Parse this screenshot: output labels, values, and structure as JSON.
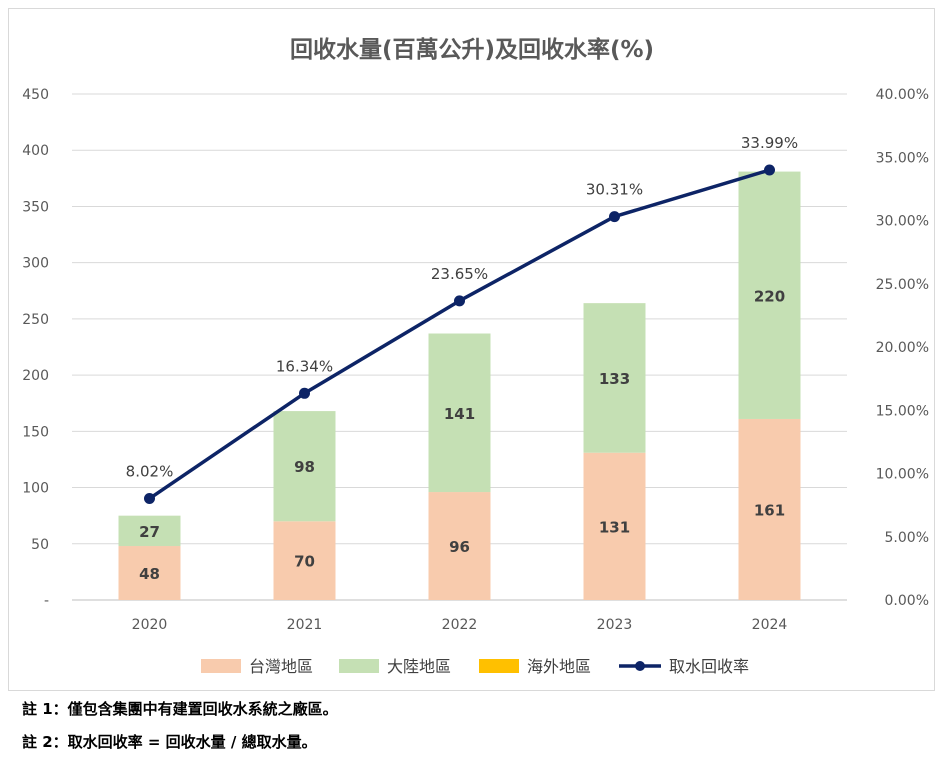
{
  "chart_data": {
    "type": "bar+line",
    "title": "回收水量(百萬公升)及回收水率(%)",
    "categories": [
      "2020",
      "2021",
      "2022",
      "2023",
      "2024"
    ],
    "series": [
      {
        "name": "台灣地區",
        "type": "stacked-bar",
        "axis": "left",
        "color": "#f8cbad",
        "values": [
          48,
          70,
          96,
          131,
          161
        ]
      },
      {
        "name": "大陸地區",
        "type": "stacked-bar",
        "axis": "left",
        "color": "#c5e0b4",
        "values": [
          27,
          98,
          141,
          133,
          220
        ]
      },
      {
        "name": "海外地區",
        "type": "stacked-bar",
        "axis": "left",
        "color": "#ffc000",
        "values": [
          0,
          0,
          0,
          0,
          0
        ]
      },
      {
        "name": "取水回收率",
        "type": "line",
        "axis": "right",
        "color": "#0d2466",
        "values": [
          8.02,
          16.34,
          23.65,
          30.31,
          33.99
        ]
      }
    ],
    "line_labels": [
      "8.02%",
      "16.34%",
      "23.65%",
      "30.31%",
      "33.99%"
    ],
    "left_axis": {
      "ylim": [
        0,
        450
      ],
      "ticks": [
        0,
        50,
        100,
        150,
        200,
        250,
        300,
        350,
        400,
        450
      ],
      "tick_labels": [
        "-",
        "50",
        "100",
        "150",
        "200",
        "250",
        "300",
        "350",
        "400",
        "450"
      ]
    },
    "right_axis": {
      "ylim": [
        0,
        40
      ],
      "ticks": [
        0,
        5,
        10,
        15,
        20,
        25,
        30,
        35,
        40
      ],
      "tick_labels": [
        "0.00%",
        "5.00%",
        "10.00%",
        "15.00%",
        "20.00%",
        "25.00%",
        "30.00%",
        "35.00%",
        "40.00%"
      ]
    },
    "grid": true,
    "legend_position": "bottom"
  },
  "notes": [
    "註 1：僅包含集團中有建置回收水系統之廠區。",
    "註 2：取水回收率 = 回收水量 / 總取水量。"
  ]
}
